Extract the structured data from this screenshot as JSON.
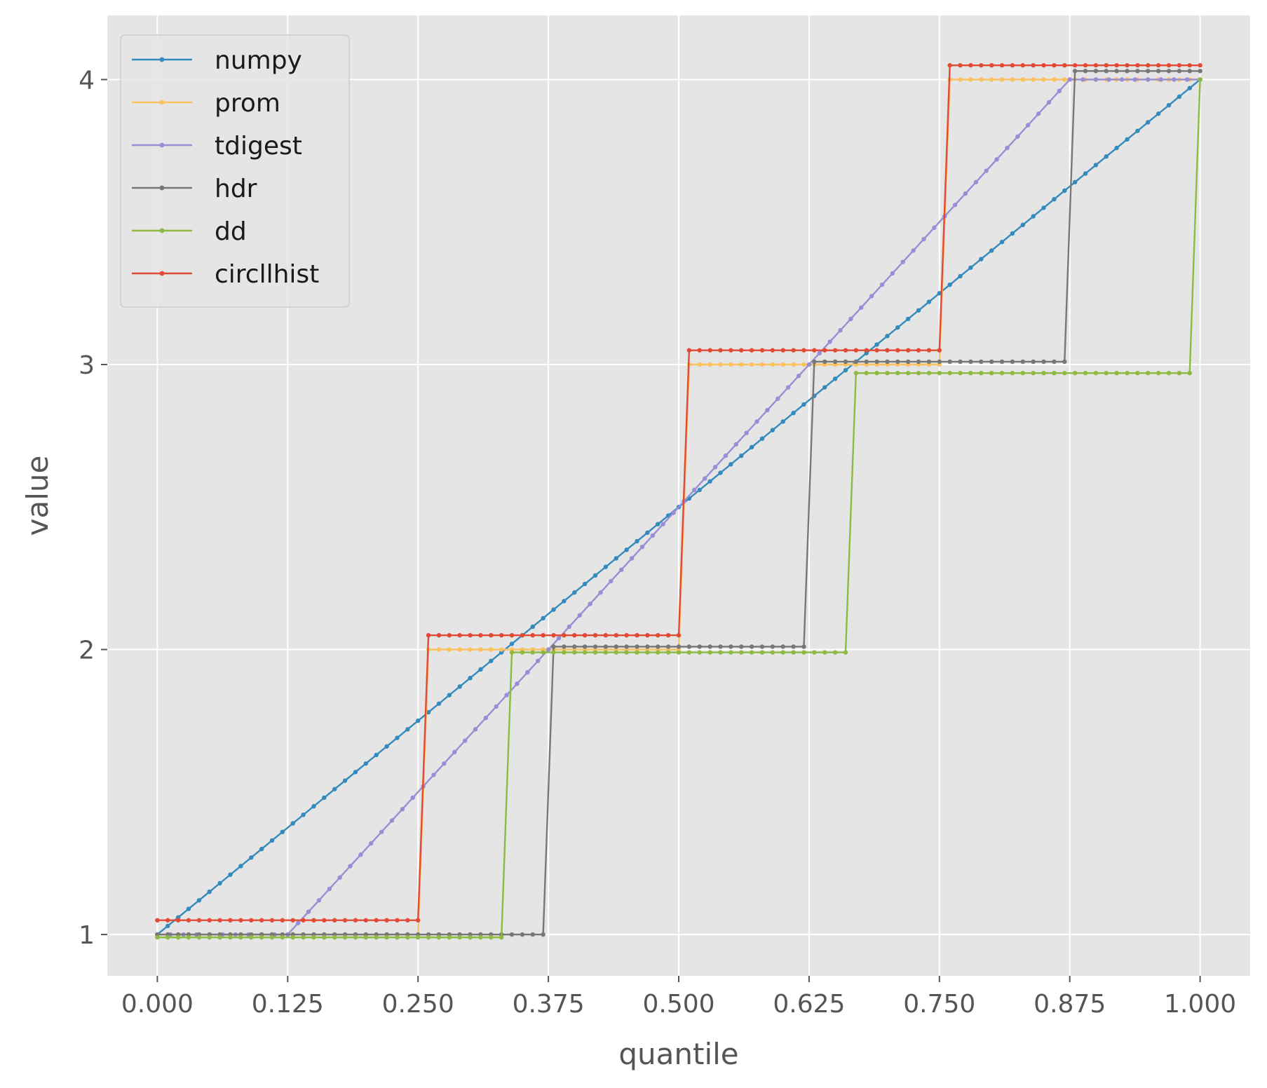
{
  "chart_data": {
    "type": "line",
    "title": "",
    "xlabel": "quantile",
    "ylabel": "value",
    "xlim": [
      -0.048,
      1.048
    ],
    "ylim": [
      0.855,
      4.225
    ],
    "xticks": [
      0.0,
      0.125,
      0.25,
      0.375,
      0.5,
      0.625,
      0.75,
      0.875,
      1.0
    ],
    "xtick_labels": [
      "0.000",
      "0.125",
      "0.250",
      "0.375",
      "0.500",
      "0.625",
      "0.750",
      "0.875",
      "1.000"
    ],
    "yticks": [
      1,
      2,
      3,
      4
    ],
    "ytick_labels": [
      "1",
      "2",
      "3",
      "4"
    ],
    "grid": true,
    "legend_position": "top-left",
    "marker": "dot",
    "series": [
      {
        "name": "numpy",
        "color": "#348ABD",
        "segments": [
          {
            "x0": 0.0,
            "x1": 1.0,
            "y0": 1.0,
            "y1": 4.0,
            "step": 0.01
          }
        ]
      },
      {
        "name": "prom",
        "color": "#FBC15E",
        "segments": [
          {
            "x0": 0.0,
            "x1": 0.25,
            "y0": 1.0,
            "y1": 1.0,
            "step": 0.01
          },
          {
            "x0": 0.26,
            "x1": 0.5,
            "y0": 2.0,
            "y1": 2.0,
            "step": 0.01
          },
          {
            "x0": 0.51,
            "x1": 0.75,
            "y0": 3.0,
            "y1": 3.0,
            "step": 0.01
          },
          {
            "x0": 0.76,
            "x1": 1.0,
            "y0": 4.0,
            "y1": 4.0,
            "step": 0.01
          }
        ]
      },
      {
        "name": "tdigest",
        "color": "#988ED5",
        "segments": [
          {
            "x0": 0.0,
            "x1": 0.125,
            "y0": 1.0,
            "y1": 1.0,
            "step": 0.0125
          },
          {
            "x0": 0.125,
            "x1": 0.875,
            "y0": 1.0,
            "y1": 4.0,
            "step": 0.01
          },
          {
            "x0": 0.875,
            "x1": 1.0,
            "y0": 4.0,
            "y1": 4.0,
            "step": 0.0125
          }
        ]
      },
      {
        "name": "hdr",
        "color": "#777777",
        "segments": [
          {
            "x0": 0.0,
            "x1": 0.37,
            "y0": 1.0,
            "y1": 1.0,
            "step": 0.01
          },
          {
            "x0": 0.38,
            "x1": 0.62,
            "y0": 2.01,
            "y1": 2.01,
            "step": 0.01
          },
          {
            "x0": 0.63,
            "x1": 0.87,
            "y0": 3.01,
            "y1": 3.01,
            "step": 0.01
          },
          {
            "x0": 0.88,
            "x1": 1.0,
            "y0": 4.03,
            "y1": 4.03,
            "step": 0.01
          }
        ]
      },
      {
        "name": "dd",
        "color": "#8EBA42",
        "segments": [
          {
            "x0": 0.0,
            "x1": 0.33,
            "y0": 0.99,
            "y1": 0.99,
            "step": 0.01
          },
          {
            "x0": 0.34,
            "x1": 0.66,
            "y0": 1.99,
            "y1": 1.99,
            "step": 0.01
          },
          {
            "x0": 0.67,
            "x1": 0.99,
            "y0": 2.97,
            "y1": 2.97,
            "step": 0.01
          },
          {
            "x0": 1.0,
            "x1": 1.0,
            "y0": 4.0,
            "y1": 4.0,
            "step": 0.01
          }
        ]
      },
      {
        "name": "circllhist",
        "color": "#E24A33",
        "segments": [
          {
            "x0": 0.0,
            "x1": 0.25,
            "y0": 1.05,
            "y1": 1.05,
            "step": 0.01
          },
          {
            "x0": 0.26,
            "x1": 0.5,
            "y0": 2.05,
            "y1": 2.05,
            "step": 0.01
          },
          {
            "x0": 0.51,
            "x1": 0.75,
            "y0": 3.05,
            "y1": 3.05,
            "step": 0.01
          },
          {
            "x0": 0.76,
            "x1": 1.0,
            "y0": 4.05,
            "y1": 4.05,
            "step": 0.01
          }
        ]
      }
    ]
  }
}
